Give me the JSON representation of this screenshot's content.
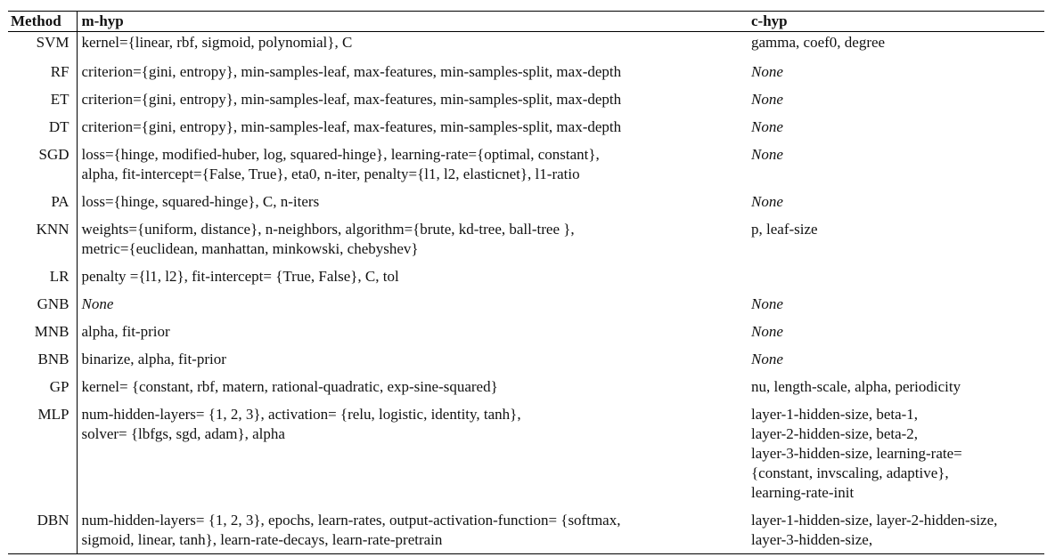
{
  "headers": {
    "method": "Method",
    "mhyp": "m-hyp",
    "chyp": "c-hyp"
  },
  "rows": [
    {
      "method": "SVM",
      "mhyp": [
        "kernel={linear, rbf, sigmoid, polynomial}, C"
      ],
      "chyp": [
        "gamma, coef0, degree"
      ]
    },
    {
      "method": "RF",
      "mhyp": [
        "criterion={gini, entropy}, min-samples-leaf, max-features, min-samples-split, max-depth"
      ],
      "chyp": [
        "None"
      ]
    },
    {
      "method": "ET",
      "mhyp": [
        "criterion={gini, entropy}, min-samples-leaf, max-features, min-samples-split, max-depth"
      ],
      "chyp": [
        "None"
      ]
    },
    {
      "method": "DT",
      "mhyp": [
        "criterion={gini, entropy}, min-samples-leaf, max-features, min-samples-split, max-depth"
      ],
      "chyp": [
        "None"
      ]
    },
    {
      "method": "SGD",
      "mhyp": [
        "loss={hinge, modified-huber, log, squared-hinge}, learning-rate={optimal, constant},",
        "alpha, fit-intercept={False, True}, eta0, n-iter, penalty={l1, l2, elasticnet}, l1-ratio"
      ],
      "chyp": [
        "None"
      ]
    },
    {
      "method": "PA",
      "mhyp": [
        "loss={hinge, squared-hinge}, C, n-iters"
      ],
      "chyp": [
        "None"
      ]
    },
    {
      "method": "KNN",
      "mhyp": [
        "weights={uniform, distance}, n-neighbors, algorithm={brute, kd-tree, ball-tree },",
        "metric={euclidean, manhattan, minkowski, chebyshev}"
      ],
      "chyp": [
        "p, leaf-size"
      ]
    },
    {
      "method": "LR",
      "mhyp": [
        "penalty ={l1, l2}, fit-intercept= {True, False}, C, tol"
      ],
      "chyp": []
    },
    {
      "method": "GNB",
      "mhyp": [
        "None"
      ],
      "chyp": [
        "None"
      ]
    },
    {
      "method": "MNB",
      "mhyp": [
        "alpha, fit-prior"
      ],
      "chyp": [
        "None"
      ]
    },
    {
      "method": "BNB",
      "mhyp": [
        "binarize, alpha, fit-prior"
      ],
      "chyp": [
        "None"
      ]
    },
    {
      "method": "GP",
      "mhyp": [
        "kernel= {constant, rbf, matern, rational-quadratic, exp-sine-squared}"
      ],
      "chyp": [
        "nu, length-scale, alpha, periodicity"
      ]
    },
    {
      "method": "MLP",
      "mhyp": [
        "num-hidden-layers= {1, 2, 3}, activation= {relu, logistic, identity, tanh},",
        "solver= {lbfgs, sgd, adam}, alpha"
      ],
      "chyp": [
        "layer-1-hidden-size, beta-1,",
        "layer-2-hidden-size, beta-2,",
        "layer-3-hidden-size, learning-rate=",
        "{constant, invscaling, adaptive},",
        "learning-rate-init"
      ]
    },
    {
      "method": "DBN",
      "mhyp": [
        "num-hidden-layers= {1, 2, 3}, epochs, learn-rates, output-activation-function= {softmax,",
        "sigmoid, linear, tanh}, learn-rate-decays, learn-rate-pretrain"
      ],
      "chyp": [
        "layer-1-hidden-size, layer-2-hidden-size,",
        "layer-3-hidden-size,"
      ]
    }
  ]
}
